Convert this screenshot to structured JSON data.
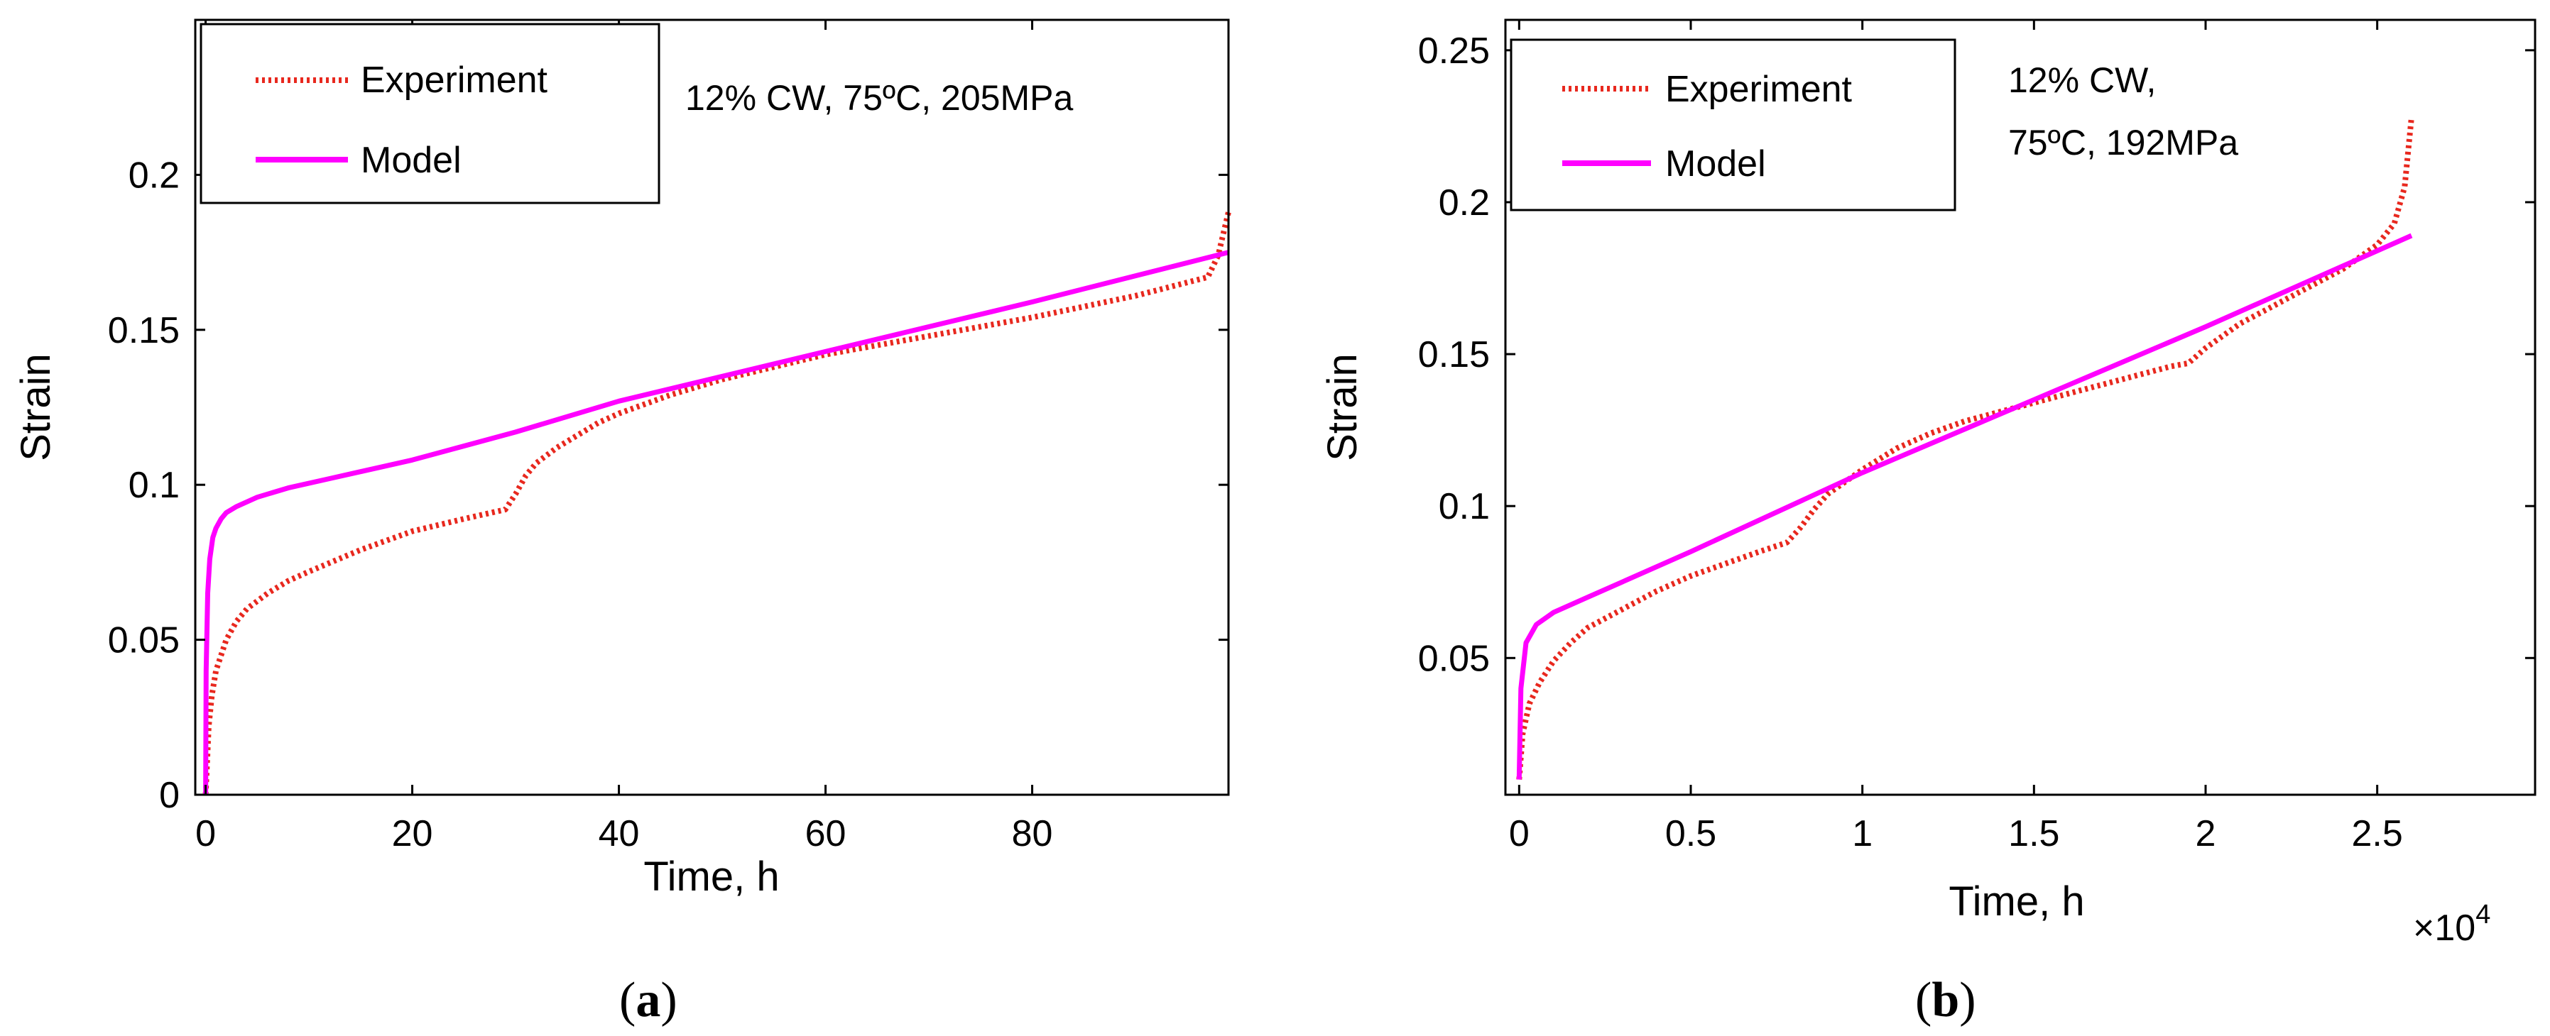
{
  "chart_data": [
    {
      "id": "a",
      "type": "line",
      "caption_label": "a",
      "xlabel": "Time, h",
      "ylabel": "Strain",
      "xlim": [
        -1,
        99
      ],
      "ylim": [
        0,
        0.25
      ],
      "xticks": [
        0,
        20,
        40,
        60,
        80
      ],
      "xtick_labels": [
        "0",
        "20",
        "40",
        "60",
        "80"
      ],
      "yticks": [
        0,
        0.05,
        0.1,
        0.15,
        0.2
      ],
      "ytick_labels": [
        "0",
        "0.05",
        "0.1",
        "0.15",
        "0.2"
      ],
      "exponent_label": "",
      "annotation": [
        "12% CW, 75ºC, 205MPa"
      ],
      "legend": {
        "location": "top-left",
        "entries": [
          "Experiment",
          "Model"
        ]
      },
      "series": [
        {
          "name": "Experiment",
          "color": "#e8281e",
          "style": "dotted",
          "x": [
            0,
            0.3,
            0.6,
            1,
            2,
            3,
            4,
            6,
            8,
            10,
            15,
            20,
            25,
            29,
            30,
            31,
            32,
            34,
            36,
            38,
            40,
            45,
            50,
            60,
            70,
            80,
            90,
            97,
            98,
            98.5,
            99
          ],
          "y": [
            0,
            0.022,
            0.032,
            0.04,
            0.05,
            0.056,
            0.06,
            0.065,
            0.069,
            0.072,
            0.079,
            0.085,
            0.089,
            0.092,
            0.097,
            0.103,
            0.107,
            0.112,
            0.116,
            0.12,
            0.123,
            0.129,
            0.134,
            0.142,
            0.148,
            0.154,
            0.161,
            0.167,
            0.174,
            0.181,
            0.188
          ]
        },
        {
          "name": "Model",
          "color": "#ff00ff",
          "style": "solid",
          "x": [
            0,
            0.05,
            0.2,
            0.4,
            0.7,
            1,
            1.5,
            2,
            3,
            5,
            8,
            12,
            20,
            30,
            40,
            60,
            80,
            99
          ],
          "y": [
            0,
            0.04,
            0.065,
            0.076,
            0.083,
            0.086,
            0.089,
            0.091,
            0.093,
            0.096,
            0.099,
            0.102,
            0.108,
            0.117,
            0.127,
            0.143,
            0.159,
            0.175
          ]
        }
      ]
    },
    {
      "id": "b",
      "type": "line",
      "caption_label": "b",
      "xlabel": "Time, h",
      "ylabel": "Strain",
      "xlim": [
        -0.04,
        2.96
      ],
      "ylim": [
        0.005,
        0.26
      ],
      "xticks": [
        0,
        0.5,
        1,
        1.5,
        2,
        2.5
      ],
      "xtick_labels": [
        "0",
        "0.5",
        "1",
        "1.5",
        "2",
        "2.5"
      ],
      "yticks": [
        0.05,
        0.1,
        0.15,
        0.2,
        0.25
      ],
      "ytick_labels": [
        "0.05",
        "0.1",
        "0.15",
        "0.2",
        "0.25"
      ],
      "exponent_label": "×10",
      "exponent_power": "4",
      "annotation": [
        "12% CW,",
        "75ºC, 192MPa"
      ],
      "legend": {
        "location": "top-left",
        "entries": [
          "Experiment",
          "Model"
        ]
      },
      "series": [
        {
          "name": "Experiment",
          "color": "#e8281e",
          "style": "dotted",
          "x": [
            0,
            0.01,
            0.03,
            0.06,
            0.1,
            0.15,
            0.2,
            0.3,
            0.4,
            0.5,
            0.6,
            0.7,
            0.78,
            0.82,
            0.86,
            0.9,
            1.0,
            1.1,
            1.2,
            1.3,
            1.4,
            1.5,
            1.6,
            1.7,
            1.8,
            1.9,
            1.95,
            2.0,
            2.1,
            2.2,
            2.3,
            2.4,
            2.5,
            2.55,
            2.58,
            2.6
          ],
          "y": [
            0.01,
            0.025,
            0.035,
            0.042,
            0.049,
            0.055,
            0.06,
            0.066,
            0.072,
            0.077,
            0.081,
            0.085,
            0.088,
            0.093,
            0.099,
            0.104,
            0.112,
            0.119,
            0.124,
            0.128,
            0.131,
            0.134,
            0.137,
            0.14,
            0.143,
            0.146,
            0.147,
            0.152,
            0.16,
            0.166,
            0.172,
            0.178,
            0.186,
            0.193,
            0.205,
            0.228
          ]
        },
        {
          "name": "Model",
          "color": "#ff00ff",
          "style": "solid",
          "x": [
            0,
            0.005,
            0.02,
            0.05,
            0.1,
            0.2,
            0.5,
            1.0,
            1.5,
            2.0,
            2.6
          ],
          "y": [
            0.01,
            0.04,
            0.055,
            0.061,
            0.065,
            0.07,
            0.085,
            0.111,
            0.135,
            0.159,
            0.189
          ]
        }
      ]
    }
  ]
}
